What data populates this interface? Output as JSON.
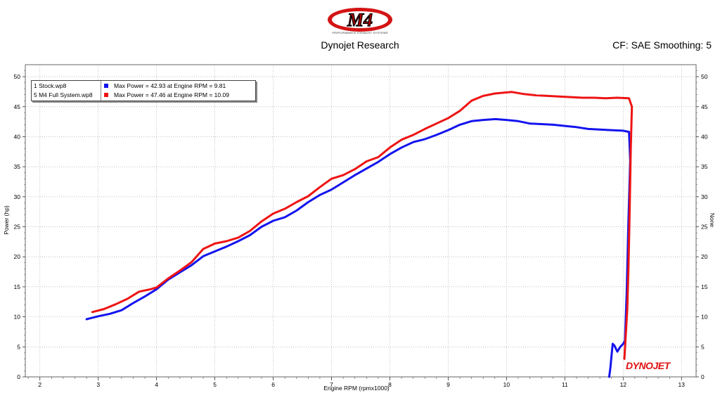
{
  "header": {
    "title": "Dynojet Research",
    "cf_text": "CF: SAE Smoothing: 5",
    "logo_text": "M4",
    "logo_caption": "PERFORMANCE EXHAUST SYSTEMS"
  },
  "legend": {
    "entries": [
      {
        "file": "1 Stock.wp8",
        "max_text": "Max Power = 42.93 at Engine RPM = 9.81",
        "color": "#1414ee"
      },
      {
        "file": "5 M4 Full System.wp8",
        "max_text": "Max Power = 47.46 at Engine RPM = 10.09",
        "color": "#ee1414"
      }
    ]
  },
  "watermark": "DYNOJET",
  "colors": {
    "stock": "#1414ee",
    "m4": "#ee1414",
    "plot_bg": "#ffffff"
  },
  "chart_data": {
    "type": "line",
    "xlabel": "Engine RPM (rpmx1000)",
    "ylabel": "Power (hp)",
    "ylabel_right": "None",
    "xlim": [
      1.75,
      13.25
    ],
    "ylim": [
      0,
      52
    ],
    "x_ticks": [
      2,
      3,
      4,
      5,
      6,
      7,
      8,
      9,
      10,
      11,
      12,
      13
    ],
    "y_ticks": [
      0,
      5,
      10,
      15,
      20,
      25,
      30,
      35,
      40,
      45,
      50
    ],
    "grid": true,
    "legend_position": "top-left",
    "series": [
      {
        "name": "1 Stock.wp8",
        "points": [
          [
            2.8,
            9.6
          ],
          [
            3.0,
            10.1
          ],
          [
            3.2,
            10.5
          ],
          [
            3.4,
            11.1
          ],
          [
            3.6,
            12.3
          ],
          [
            3.8,
            13.4
          ],
          [
            4.0,
            14.6
          ],
          [
            4.2,
            16.2
          ],
          [
            4.4,
            17.4
          ],
          [
            4.6,
            18.6
          ],
          [
            4.8,
            20.1
          ],
          [
            5.0,
            20.9
          ],
          [
            5.2,
            21.7
          ],
          [
            5.4,
            22.6
          ],
          [
            5.6,
            23.6
          ],
          [
            5.8,
            25.0
          ],
          [
            6.0,
            26.0
          ],
          [
            6.2,
            26.6
          ],
          [
            6.4,
            27.7
          ],
          [
            6.6,
            29.1
          ],
          [
            6.8,
            30.3
          ],
          [
            7.0,
            31.2
          ],
          [
            7.2,
            32.4
          ],
          [
            7.4,
            33.6
          ],
          [
            7.6,
            34.7
          ],
          [
            7.8,
            35.8
          ],
          [
            8.0,
            37.1
          ],
          [
            8.2,
            38.2
          ],
          [
            8.4,
            39.1
          ],
          [
            8.6,
            39.6
          ],
          [
            8.8,
            40.3
          ],
          [
            9.0,
            41.1
          ],
          [
            9.2,
            42.0
          ],
          [
            9.4,
            42.6
          ],
          [
            9.6,
            42.8
          ],
          [
            9.81,
            42.93
          ],
          [
            10.0,
            42.8
          ],
          [
            10.2,
            42.6
          ],
          [
            10.4,
            42.2
          ],
          [
            10.6,
            42.1
          ],
          [
            10.8,
            42.0
          ],
          [
            11.0,
            41.8
          ],
          [
            11.2,
            41.6
          ],
          [
            11.4,
            41.3
          ],
          [
            11.6,
            41.2
          ],
          [
            11.8,
            41.1
          ],
          [
            12.0,
            41.0
          ],
          [
            12.1,
            40.8
          ],
          [
            12.12,
            36.0
          ],
          [
            12.09,
            26.0
          ],
          [
            12.06,
            14.0
          ],
          [
            12.03,
            6.0
          ],
          [
            12.0,
            5.5
          ],
          [
            11.95,
            5.0
          ],
          [
            11.9,
            4.2
          ],
          [
            11.85,
            5.2
          ],
          [
            11.82,
            5.5
          ],
          [
            11.8,
            3.5
          ],
          [
            11.78,
            1.5
          ],
          [
            11.76,
            0.0
          ]
        ]
      },
      {
        "name": "5 M4 Full System.wp8",
        "points": [
          [
            2.9,
            10.8
          ],
          [
            3.1,
            11.3
          ],
          [
            3.3,
            12.1
          ],
          [
            3.5,
            13.0
          ],
          [
            3.7,
            14.2
          ],
          [
            3.9,
            14.6
          ],
          [
            4.0,
            14.9
          ],
          [
            4.2,
            16.4
          ],
          [
            4.4,
            17.7
          ],
          [
            4.6,
            19.1
          ],
          [
            4.8,
            21.3
          ],
          [
            5.0,
            22.2
          ],
          [
            5.2,
            22.6
          ],
          [
            5.4,
            23.2
          ],
          [
            5.6,
            24.3
          ],
          [
            5.8,
            25.9
          ],
          [
            6.0,
            27.2
          ],
          [
            6.2,
            28.0
          ],
          [
            6.4,
            29.1
          ],
          [
            6.6,
            30.1
          ],
          [
            6.8,
            31.6
          ],
          [
            7.0,
            33.0
          ],
          [
            7.2,
            33.6
          ],
          [
            7.4,
            34.6
          ],
          [
            7.6,
            35.9
          ],
          [
            7.8,
            36.6
          ],
          [
            8.0,
            38.2
          ],
          [
            8.2,
            39.5
          ],
          [
            8.4,
            40.3
          ],
          [
            8.6,
            41.3
          ],
          [
            8.8,
            42.2
          ],
          [
            9.0,
            43.1
          ],
          [
            9.2,
            44.3
          ],
          [
            9.4,
            46.0
          ],
          [
            9.6,
            46.8
          ],
          [
            9.8,
            47.2
          ],
          [
            10.09,
            47.46
          ],
          [
            10.3,
            47.1
          ],
          [
            10.5,
            46.9
          ],
          [
            10.7,
            46.8
          ],
          [
            10.9,
            46.7
          ],
          [
            11.1,
            46.6
          ],
          [
            11.3,
            46.5
          ],
          [
            11.5,
            46.5
          ],
          [
            11.7,
            46.4
          ],
          [
            11.9,
            46.5
          ],
          [
            12.1,
            46.4
          ],
          [
            12.15,
            45.0
          ],
          [
            12.13,
            38.0
          ],
          [
            12.11,
            27.0
          ],
          [
            12.09,
            18.0
          ],
          [
            12.07,
            11.2
          ],
          [
            12.05,
            8.0
          ],
          [
            12.02,
            3.0
          ]
        ]
      }
    ]
  }
}
